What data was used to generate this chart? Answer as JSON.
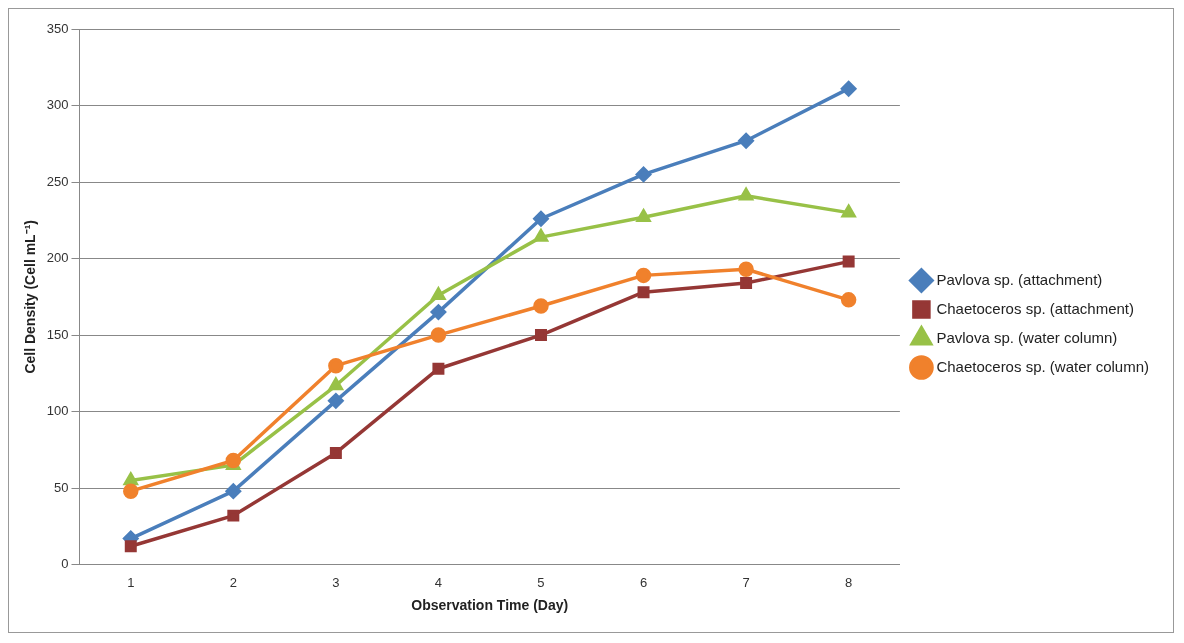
{
  "chart_data": {
    "type": "line",
    "xlabel": "Observation Time (Day)",
    "ylabel": "Cell Density (Cell mL⁻¹)",
    "categories": [
      "1",
      "2",
      "3",
      "4",
      "5",
      "6",
      "7",
      "8"
    ],
    "ylim": [
      0,
      350
    ],
    "yticks": [
      0,
      50,
      100,
      150,
      200,
      250,
      300,
      350
    ],
    "grid": "y",
    "legend": "right",
    "line_style": "solid",
    "series": [
      {
        "name": "Pavlova sp. (attachment)",
        "color": "#4a7ebb",
        "marker": "diamond",
        "values": [
          17,
          48,
          107,
          165,
          226,
          255,
          277,
          311
        ]
      },
      {
        "name": "Chaetoceros sp. (attachment)",
        "color": "#953735",
        "marker": "square",
        "values": [
          12,
          32,
          73,
          128,
          150,
          178,
          184,
          198
        ]
      },
      {
        "name": "Pavlova sp. (water column)",
        "color": "#98c147",
        "marker": "triangle",
        "values": [
          55,
          65,
          117,
          176,
          214,
          227,
          241,
          230
        ]
      },
      {
        "name": "Chaetoceros sp. (water column)",
        "color": "#f0812c",
        "marker": "circle",
        "values": [
          48,
          68,
          130,
          150,
          169,
          189,
          193,
          173
        ]
      }
    ]
  }
}
